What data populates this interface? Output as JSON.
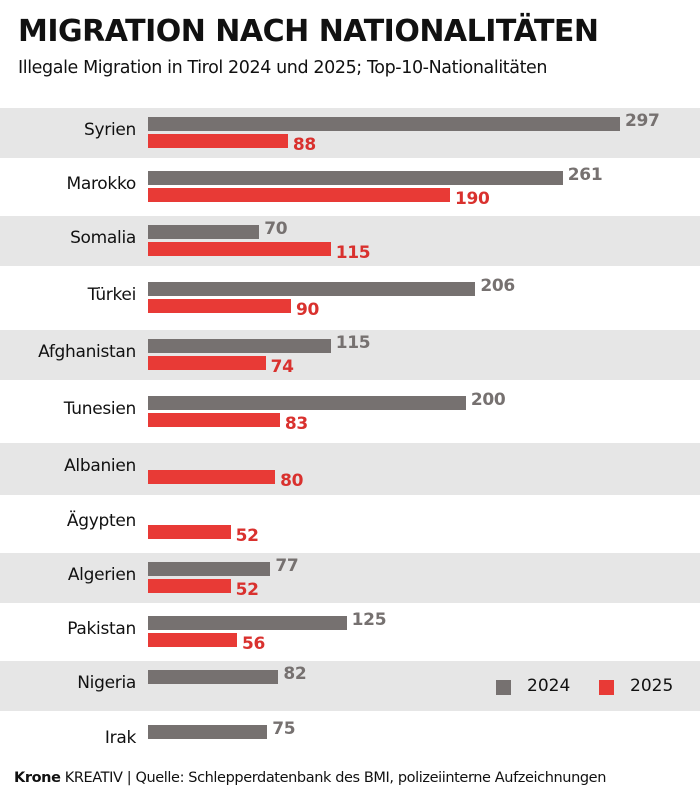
{
  "title": "MIGRATION NACH NATIONALITÄTEN",
  "subtitle": "Illegale Migration in Tirol 2024 und 2025; Top-10-Nationalitäten",
  "footer": {
    "brand": "Krone",
    "brand_suffix": "KREATIV",
    "separator": "|",
    "source": "Quelle: Schlepperdatenbank des BMI, polizeiinterne Aufzeichnungen"
  },
  "colors": {
    "series_2024": "#767170",
    "series_2025": "#e83a36",
    "band": "#e6e6e6"
  },
  "chart_data": {
    "type": "bar",
    "orientation": "horizontal",
    "title": "MIGRATION NACH NATIONALITÄTEN",
    "subtitle": "Illegale Migration in Tirol 2024 und 2025; Top-10-Nationalitäten",
    "xlabel": "",
    "ylabel": "",
    "xlim": [
      0,
      297
    ],
    "grid": false,
    "legend_position": "bottom-right",
    "categories": [
      "Syrien",
      "Marokko",
      "Somalia",
      "Türkei",
      "Afghanistan",
      "Tunesien",
      "Albanien",
      "Ägypten",
      "Algerien",
      "Pakistan",
      "Nigeria",
      "Irak"
    ],
    "series": [
      {
        "name": "2024",
        "values": [
          297,
          261,
          70,
          206,
          115,
          200,
          null,
          null,
          77,
          125,
          82,
          75
        ]
      },
      {
        "name": "2025",
        "values": [
          88,
          190,
          115,
          90,
          74,
          83,
          80,
          52,
          52,
          56,
          null,
          null
        ]
      }
    ]
  }
}
